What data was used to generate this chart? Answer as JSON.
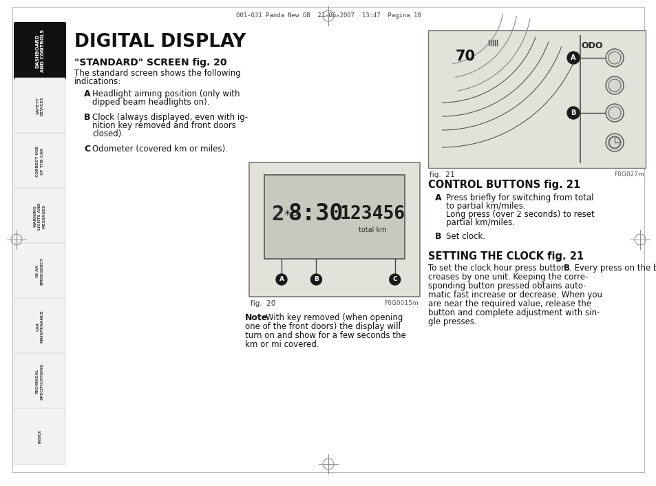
{
  "page_num": "18",
  "header_text": "001-031 Panda New GB  21-06-2007  13:47  Pagina 18",
  "title": "DIGITAL DISPLAY",
  "section1_title": "\"STANDARD\" SCREEN fig. 20",
  "section1_body_line1": "The standard screen shows the following",
  "section1_body_line2": "indications:",
  "items_A_B_C": [
    [
      "A",
      "Headlight aiming position (only with",
      "dipped beam headlights on)."
    ],
    [
      "B",
      "Clock (always displayed, even with ig-",
      "nition key removed and front doors",
      "closed)."
    ],
    [
      "C",
      "Odometer (covered km or miles)."
    ]
  ],
  "fig20_label": "fig.  20",
  "fig20_code": "F0G0015m",
  "fig21_label": "fig.  21",
  "fig21_code": "F0G027m",
  "note_bold": "Note",
  "note_lines": [
    "With key removed (when opening",
    "one of the front doors) the display will",
    "turn on and show for a few seconds the",
    "km or mi covered."
  ],
  "section2_title": "CONTROL BUTTONS fig. 21",
  "ctrl_items": [
    [
      "A",
      "Press briefly for switching from total",
      "to partial km/miles.",
      "Long press (over 2 seconds) to reset",
      "partial km/miles."
    ],
    [
      "B",
      "Set clock."
    ]
  ],
  "section3_title": "SETTING THE CLOCK fig. 21",
  "sec3_lines": [
    "To set the clock hour press button ",
    "B",
    ". Every press on the button increases or de-",
    "creases by one unit. Keeping the corre-",
    "sponding button pressed obtains auto-",
    "matic fast increase or decrease. When you",
    "are near the required value, release the",
    "button and complete adjustment with sin-",
    "gle presses."
  ],
  "sidebar_labels": [
    "DASHBOARD\nAND CONTROLS",
    "SAFETY\nDEVICES",
    "CORRECT USE\nOF THE CAR",
    "WARNING\nLIGHTS AND\nMESSAGES",
    "IN AN\nEMERGENCY",
    "CAR\nMAINTENANCE",
    "TECHNICAL\nSPECIFICATIONS",
    "INDEX"
  ],
  "bg_color": "#ffffff",
  "sidebar_active_color": "#111111",
  "sidebar_inactive_color": "#f2f2f2",
  "sidebar_text_active": "#ffffff",
  "sidebar_text_inactive": "#444444",
  "fig_bg": "#e2e2da",
  "display_bg": "#c8c8be",
  "display_border": "#555555",
  "fig_border": "#777777"
}
